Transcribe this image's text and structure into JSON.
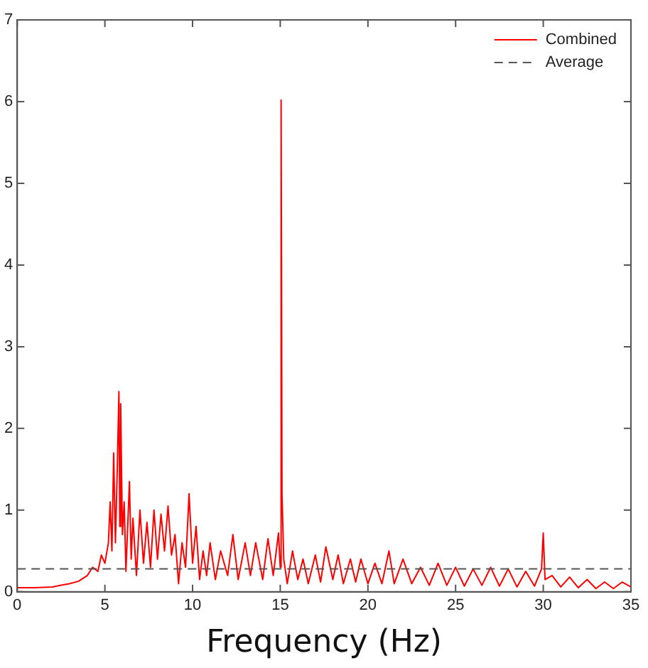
{
  "chart_data": {
    "type": "line",
    "xlabel": "Frequency (Hz)",
    "xlim": [
      0,
      35
    ],
    "xticks": [
      0,
      5,
      10,
      15,
      20,
      25,
      30,
      35
    ],
    "ylim": [
      0,
      7
    ],
    "yticks": [
      0,
      1,
      2,
      3,
      4,
      5,
      6,
      7
    ],
    "grid": false,
    "legend": "top right",
    "marker": "none",
    "line_style": "solid",
    "series": [
      {
        "name": "Combined",
        "color": "#ff0000",
        "x": [
          0,
          1,
          2,
          2.5,
          3,
          3.5,
          4,
          4.3,
          4.6,
          4.8,
          5.0,
          5.2,
          5.3,
          5.4,
          5.5,
          5.6,
          5.7,
          5.8,
          5.85,
          5.9,
          6.0,
          6.1,
          6.2,
          6.4,
          6.5,
          6.6,
          6.8,
          7.0,
          7.2,
          7.4,
          7.6,
          7.8,
          8.0,
          8.2,
          8.4,
          8.6,
          8.8,
          9.0,
          9.2,
          9.4,
          9.6,
          9.8,
          10.0,
          10.2,
          10.4,
          10.6,
          10.8,
          11.0,
          11.3,
          11.6,
          12.0,
          12.3,
          12.6,
          13.0,
          13.3,
          13.6,
          14.0,
          14.3,
          14.6,
          14.9,
          15.0,
          15.05,
          15.1,
          15.2,
          15.4,
          15.7,
          16.0,
          16.3,
          16.6,
          17.0,
          17.3,
          17.6,
          18.0,
          18.3,
          18.6,
          19.0,
          19.3,
          19.6,
          20.0,
          20.4,
          20.8,
          21.2,
          21.5,
          22.0,
          22.5,
          23.0,
          23.5,
          24.0,
          24.5,
          25.0,
          25.5,
          26.0,
          26.5,
          27.0,
          27.5,
          28.0,
          28.5,
          29.0,
          29.5,
          29.9,
          30.0,
          30.1,
          30.5,
          31.0,
          31.5,
          32.0,
          32.5,
          33.0,
          33.5,
          34.0,
          34.5,
          35.0
        ],
        "values": [
          0.05,
          0.05,
          0.06,
          0.08,
          0.1,
          0.13,
          0.2,
          0.3,
          0.25,
          0.45,
          0.35,
          0.6,
          1.1,
          0.5,
          1.7,
          0.6,
          1.45,
          2.45,
          0.8,
          2.3,
          0.7,
          1.1,
          0.25,
          1.35,
          0.4,
          0.9,
          0.2,
          1.0,
          0.35,
          0.85,
          0.3,
          1.0,
          0.4,
          0.95,
          0.5,
          1.05,
          0.45,
          0.7,
          0.1,
          0.6,
          0.3,
          1.2,
          0.35,
          0.8,
          0.15,
          0.5,
          0.2,
          0.6,
          0.15,
          0.5,
          0.2,
          0.7,
          0.15,
          0.6,
          0.2,
          0.6,
          0.15,
          0.65,
          0.2,
          0.72,
          0.3,
          6.02,
          1.2,
          0.4,
          0.1,
          0.5,
          0.15,
          0.4,
          0.1,
          0.45,
          0.12,
          0.55,
          0.15,
          0.45,
          0.1,
          0.4,
          0.12,
          0.4,
          0.1,
          0.35,
          0.1,
          0.5,
          0.1,
          0.4,
          0.1,
          0.3,
          0.08,
          0.35,
          0.08,
          0.3,
          0.07,
          0.28,
          0.08,
          0.3,
          0.07,
          0.28,
          0.06,
          0.25,
          0.07,
          0.28,
          0.72,
          0.15,
          0.2,
          0.06,
          0.18,
          0.05,
          0.15,
          0.04,
          0.12,
          0.04,
          0.12,
          0.06
        ]
      }
    ],
    "ref_lines": [
      {
        "axis": "y",
        "value": 0.28,
        "label": "Average",
        "color": "#555555",
        "line_style": "dashed"
      }
    ]
  }
}
